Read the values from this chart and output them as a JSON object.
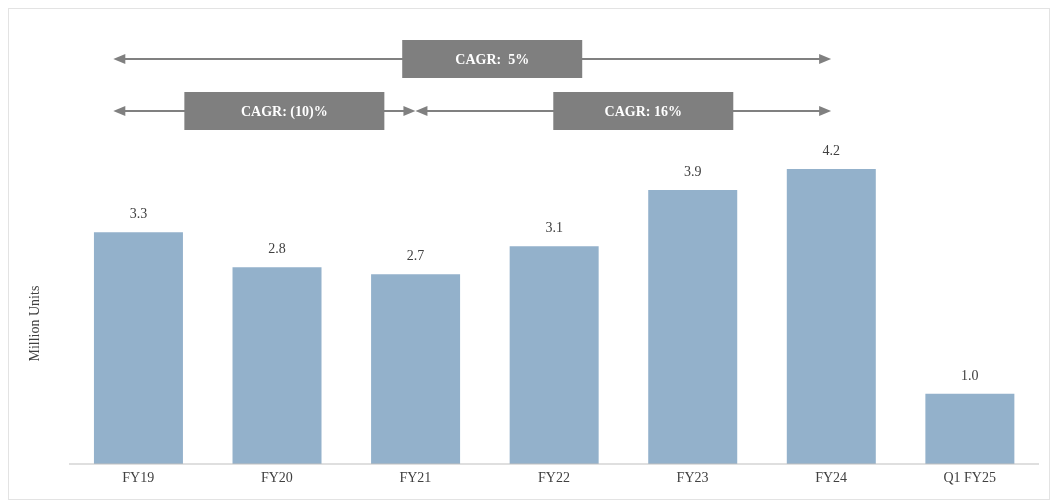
{
  "chart_data": {
    "type": "bar",
    "ylabel": "Million Units",
    "categories": [
      "FY19",
      "FY20",
      "FY21",
      "FY22",
      "FY23",
      "FY24",
      "Q1 FY25"
    ],
    "values": [
      3.3,
      2.8,
      2.7,
      3.1,
      3.9,
      4.2,
      1.0
    ],
    "value_labels": [
      "3.3",
      "2.8",
      "2.7",
      "3.1",
      "3.9",
      "4.2",
      "1.0"
    ],
    "color": "#93b1cb",
    "annotations": [
      "CAGR:  5%",
      "CAGR: (10)%",
      "CAGR: 16%"
    ]
  }
}
